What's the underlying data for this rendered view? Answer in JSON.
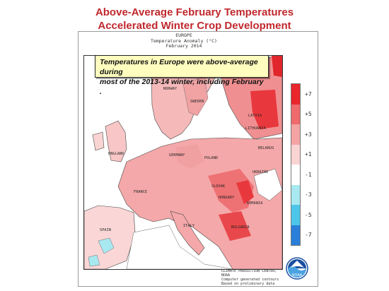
{
  "title": {
    "line1": "Above-Average February Temperatures",
    "line2": "Accelerated Winter Crop Development"
  },
  "map": {
    "header_line1": "EUROPE",
    "header_line2": "Temperature Anomaly (°C)",
    "header_line3": "February 2014",
    "callout_line1": "Temperatures in Europe were above-average during",
    "callout_line2": "most of the 2013-14 winter, including February ."
  },
  "legend": {
    "labels": [
      "+7",
      "+5",
      "+3",
      "+1",
      "-1",
      "-3",
      "-5",
      "-7"
    ],
    "colors": [
      "#e8262c",
      "#ee6a6c",
      "#f4a3a4",
      "#fad3d3",
      "#ffffff",
      "#a8e8f0",
      "#4cc6e8",
      "#2a7fd8"
    ]
  },
  "countries": {
    "norway": "NORWAY",
    "sweden": "SWEDEN",
    "latvia": "LATVIA",
    "lithuania": "LITHUANIA",
    "belarus": "BELARUS",
    "england": "ENGLAND",
    "germany": "GERMANY",
    "poland": "POLAND",
    "ukraine": "UKRAINE",
    "france": "FRANCE",
    "slovakia": "SLOVAK",
    "hungary": "HUNGARY",
    "romania": "ROMANIA",
    "bulgaria": "BULGARIA",
    "italy": "ITALY",
    "spain": "SPAIN"
  },
  "credit": {
    "line1": "CLIMATE PREDICTION CENTER, NOAA",
    "line2": "Computer generated contours",
    "line3": "Based on preliminary data"
  },
  "logo": {
    "text": "NOAA"
  }
}
